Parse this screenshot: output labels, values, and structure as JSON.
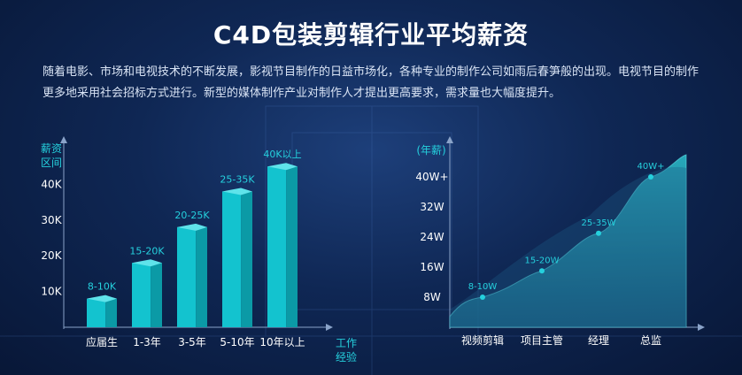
{
  "title": "C4D包装剪辑行业平均薪资",
  "description": "随着电影、市场和电视技术的不断发展，影视节目制作的日益市场化，各种专业的制作公司如雨后春笋般的出现。电视节目的制作更多地采用社会招标方式进行。新型的媒体制作产业对制作人才提出更高要求，需求量也大幅度提升。",
  "colors": {
    "accent": "#25d0dd",
    "bar_front": "#13c3cf",
    "bar_side": "#0b9aa6",
    "bar_top": "#5fe3ea",
    "area": "#2aa3b8"
  },
  "chart_data": [
    {
      "type": "bar",
      "ylabel_line1": "薪资",
      "ylabel_line2": "区间",
      "xlabel_line1": "工作",
      "xlabel_line2": "经验",
      "categories": [
        "应届生",
        "1-3年",
        "3-5年",
        "5-10年",
        "10年以上"
      ],
      "values": [
        8,
        15,
        20,
        25,
        40
      ],
      "bar_heights_k": [
        8,
        18,
        28,
        38,
        45
      ],
      "data_labels": [
        "8-10K",
        "15-20K",
        "20-25K",
        "25-35K",
        "40K以上"
      ],
      "yticks": [
        "10K",
        "20K",
        "30K",
        "40K"
      ],
      "ytick_values": [
        10,
        20,
        30,
        40
      ],
      "ylim": [
        0,
        50
      ]
    },
    {
      "type": "area",
      "ylabel": "(年薪)",
      "categories": [
        "视频剪辑",
        "项目主管",
        "经理",
        "总监"
      ],
      "values": [
        8,
        15,
        25,
        40
      ],
      "data_labels": [
        "8-10W",
        "15-20W",
        "25-35W",
        "40W+"
      ],
      "yticks": [
        "8W",
        "16W",
        "24W",
        "32W",
        "40W+"
      ],
      "ytick_values": [
        8,
        16,
        24,
        32,
        40
      ]
    }
  ]
}
